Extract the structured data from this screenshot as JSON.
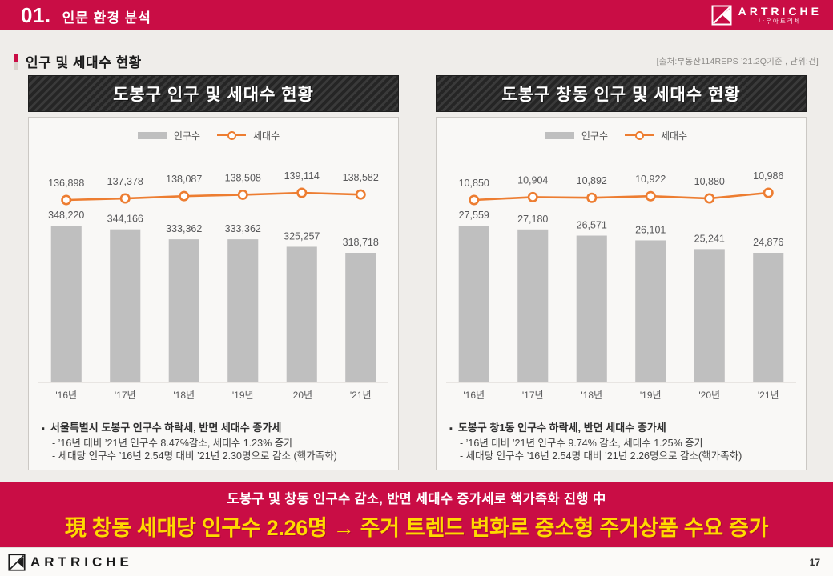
{
  "header": {
    "number": "01.",
    "title": "인문 환경 분석",
    "logo_name": "ARTRICHE",
    "logo_subtitle": "나우아트리체"
  },
  "section": {
    "title": "인구 및 세대수 현황",
    "source": "[출처:부동산114REPS ’21.2Q기준 , 단위:건]"
  },
  "legend": {
    "bar_label": "인구수",
    "line_label": "세대수"
  },
  "colors": {
    "accent_red": "#c90d45",
    "bar_color": "#bfbfbf",
    "line_color": "#ed7d31",
    "banner_yellow": "#ffd900"
  },
  "chart_data": [
    {
      "type": "bar",
      "title": "도봉구 인구 및 세대수 현황",
      "categories": [
        "'16년",
        "'17년",
        "'18년",
        "'19년",
        "'20년",
        "'21년"
      ],
      "series": [
        {
          "name": "인구수",
          "type": "bar",
          "values": [
            348220,
            344166,
            333362,
            333362,
            325257,
            318718
          ]
        },
        {
          "name": "세대수",
          "type": "line",
          "values": [
            136898,
            137378,
            138087,
            138508,
            139114,
            138582
          ]
        }
      ],
      "legend_position": "top",
      "grid": false
    },
    {
      "type": "bar",
      "title": "도봉구 창동 인구 및 세대수 현황",
      "categories": [
        "'16년",
        "'17년",
        "'18년",
        "'19년",
        "'20년",
        "'21년"
      ],
      "series": [
        {
          "name": "인구수",
          "type": "bar",
          "values": [
            27559,
            27180,
            26571,
            26101,
            25241,
            24876
          ]
        },
        {
          "name": "세대수",
          "type": "line",
          "values": [
            10850,
            10904,
            10892,
            10922,
            10880,
            10986
          ]
        }
      ],
      "legend_position": "top",
      "grid": false
    }
  ],
  "panels": [
    {
      "title": "도봉구 인구 및 세대수 현황",
      "note_head": "서울특별시 도봉구 인구수 하락세, 반면 세대수 증가세",
      "note_lines": [
        "- ’16년 대비 ’21년 인구수 8.47%감소,  세대수 1.23% 증가",
        "- 세대당 인구수 ’16년 2.54명 대비 ’21년 2.30명으로 감소 (핵가족화)"
      ]
    },
    {
      "title": "도봉구 창동 인구 및 세대수 현황",
      "note_head": "도봉구 창1동 인구수 하락세, 반면 세대수 증가세",
      "note_lines": [
        "- ’16년 대비 ’21년 인구수 9.74% 감소,  세대수 1.25% 증가",
        "- 세대당 인구수 ’16년 2.54명 대비 ’21년 2.26명으로 감소(핵가족화)"
      ]
    }
  ],
  "banner": {
    "line1": "도봉구 및 창동 인구수 감소, 반면 세대수 증가세로 핵가족화 진행 中",
    "line2": "現 창동 세대당 인구수 2.26명 → 주거 트렌드 변화로 중소형 주거상품 수요 증가"
  },
  "footer": {
    "logo": "ARTRICHE",
    "page": "17"
  }
}
